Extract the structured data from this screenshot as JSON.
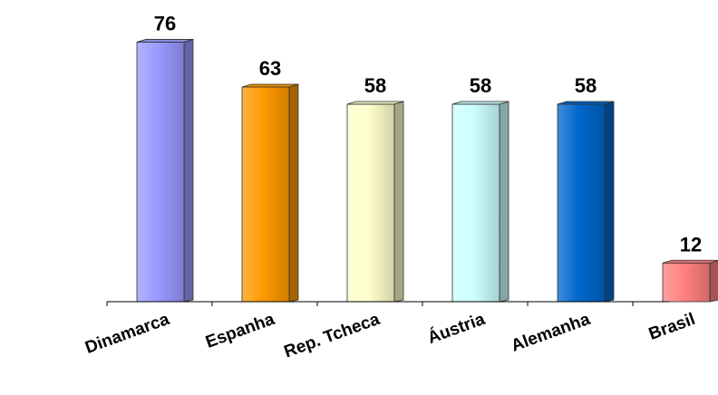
{
  "chart_data": {
    "type": "bar",
    "categories": [
      "Dinamarca",
      "Espanha",
      "Rep. Tcheca",
      "Áustria",
      "Alemanha",
      "Brasil"
    ],
    "values": [
      76,
      63,
      58,
      58,
      58,
      12
    ],
    "title": "",
    "xlabel": "",
    "ylabel": "",
    "ylim": [
      0,
      80
    ],
    "grid": false,
    "legend": "none",
    "data_labels": true,
    "bar_colors": [
      "#9999ff",
      "#ff9900",
      "#ffffcc",
      "#ccffff",
      "#0066cc",
      "#ff8080"
    ]
  }
}
